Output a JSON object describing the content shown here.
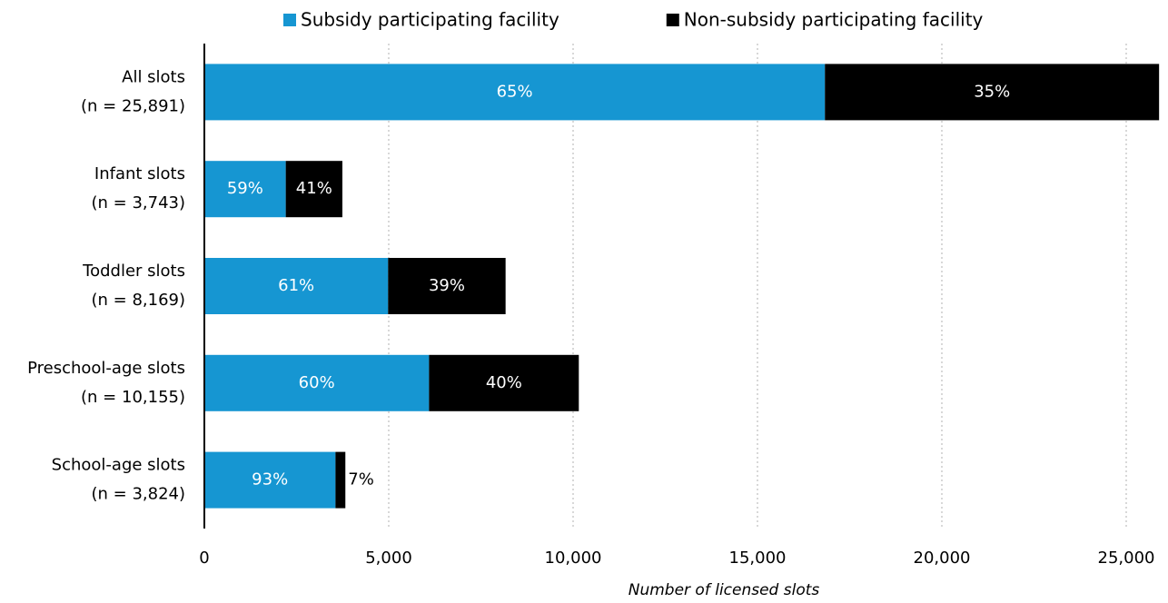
{
  "chart_data": {
    "type": "stacked-bar-horizontal",
    "categories": [
      [
        "All slots",
        "(n = 25,891)"
      ],
      [
        "Infant slots",
        "(n = 3,743)"
      ],
      [
        "Toddler slots",
        "(n = 8,169)"
      ],
      [
        "Preschool-age slots",
        "(n = 10,155)"
      ],
      [
        "School-age slots",
        "(n = 3,824)"
      ]
    ],
    "series": [
      {
        "name": "Subsidy participating facility",
        "color": "#1696d2",
        "values": [
          16829,
          2208,
          4983,
          6093,
          3556
        ],
        "value_labels": [
          "65%",
          "59%",
          "61%",
          "60%",
          "93%"
        ]
      },
      {
        "name": "Non-subsidy participating facility",
        "color": "#000000",
        "values": [
          9062,
          1535,
          3186,
          4062,
          268
        ],
        "value_labels": [
          "35%",
          "41%",
          "39%",
          "40%",
          "7%"
        ]
      }
    ],
    "xlabel": "Number of licensed slots",
    "xlim": [
      0,
      26000
    ],
    "xticks": [
      0,
      {
        "value": 5000,
        "label": "5,000"
      },
      {
        "value": 10000,
        "label": "10,000"
      },
      {
        "value": 15000,
        "label": "15,000"
      },
      {
        "value": 20000,
        "label": "20,000"
      },
      {
        "value": 25000,
        "label": "25,000"
      }
    ],
    "grid": true,
    "legend": "top"
  }
}
